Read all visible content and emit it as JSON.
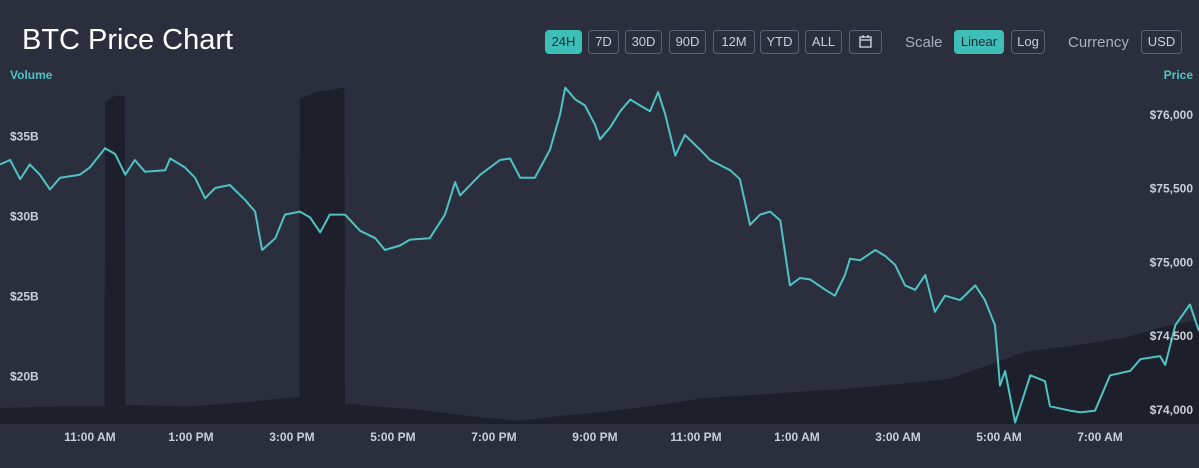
{
  "chart_data": {
    "type": "price-volume",
    "title": "BTC Price Chart",
    "toolbar": {
      "ranges": [
        "24H",
        "7D",
        "30D",
        "90D",
        "12M",
        "YTD",
        "ALL"
      ],
      "active_range": 0,
      "scale_label": "Scale",
      "scales": [
        "Linear",
        "Log"
      ],
      "active_scale": 0,
      "currency_label": "Currency",
      "currency": "USD"
    },
    "xlim": [
      9.22,
      32.96
    ],
    "xticks": [
      {
        "value": 11,
        "label": "11:00 AM"
      },
      {
        "value": 13,
        "label": "1:00 PM"
      },
      {
        "value": 15,
        "label": "3:00 PM"
      },
      {
        "value": 17,
        "label": "5:00 PM"
      },
      {
        "value": 19,
        "label": "7:00 PM"
      },
      {
        "value": 21,
        "label": "9:00 PM"
      },
      {
        "value": 23,
        "label": "11:00 PM"
      },
      {
        "value": 25,
        "label": "1:00 AM"
      },
      {
        "value": 27,
        "label": "3:00 AM"
      },
      {
        "value": 29,
        "label": "5:00 AM"
      },
      {
        "value": 31,
        "label": "7:00 AM"
      }
    ],
    "ylim": [
      17.1,
      39.2
    ],
    "yticks": [
      {
        "value": 20,
        "label": "$20B"
      },
      {
        "value": 25,
        "label": "$25B"
      },
      {
        "value": 30,
        "label": "$30B"
      },
      {
        "value": 35,
        "label": "$35B"
      }
    ],
    "y2lim": [
      73910,
      76310
    ],
    "y2ticks": [
      {
        "value": 74000,
        "label": "$74,000"
      },
      {
        "value": 74500,
        "label": "$74,500"
      },
      {
        "value": 75000,
        "label": "$75,000"
      },
      {
        "value": 75500,
        "label": "$75,500"
      },
      {
        "value": 76000,
        "label": "$76,000"
      }
    ],
    "series": [
      {
        "name": "Volume",
        "color": "#1d202b",
        "kind": "area",
        "x": [
          9.22,
          10.4,
          11.29,
          11.3,
          11.5,
          11.69,
          11.7,
          13.0,
          14.2,
          15.15,
          15.16,
          15.46,
          16.04,
          16.05,
          16.65,
          17.5,
          18.5,
          19.5,
          20.3,
          21.3,
          22.3,
          23.1,
          24.0,
          25.0,
          26.0,
          27.0,
          28.0,
          29.0,
          29.5,
          30.5,
          31.5,
          32.3,
          32.96
        ],
        "values": [
          18.1,
          18.2,
          18.2,
          37.2,
          37.6,
          37.6,
          18.3,
          18.2,
          18.5,
          18.8,
          37.4,
          37.8,
          38.1,
          18.4,
          18.2,
          18.0,
          17.6,
          17.3,
          17.6,
          17.9,
          18.3,
          18.7,
          18.9,
          19.1,
          19.3,
          19.6,
          19.9,
          21.0,
          21.6,
          22.0,
          22.5,
          23.2,
          23.6
        ]
      },
      {
        "name": "Price",
        "color": "#4fc3c4",
        "kind": "line",
        "axis": "y2",
        "x": [
          9.22,
          9.42,
          9.62,
          9.81,
          10.01,
          10.21,
          10.41,
          10.8,
          11.0,
          11.3,
          11.5,
          11.7,
          11.89,
          12.09,
          12.49,
          12.59,
          12.88,
          13.08,
          13.28,
          13.48,
          13.77,
          14.07,
          14.27,
          14.41,
          14.67,
          14.86,
          15.16,
          15.36,
          15.56,
          15.75,
          16.05,
          16.35,
          16.65,
          16.84,
          17.14,
          17.34,
          17.73,
          18.03,
          18.23,
          18.33,
          18.73,
          19.12,
          19.32,
          19.52,
          19.81,
          20.11,
          20.31,
          20.41,
          20.61,
          20.8,
          21.0,
          21.1,
          21.3,
          21.5,
          21.7,
          21.89,
          22.09,
          22.25,
          22.39,
          22.59,
          22.78,
          23.08,
          23.28,
          23.68,
          23.87,
          24.07,
          24.27,
          24.47,
          24.67,
          24.86,
          25.06,
          25.26,
          25.56,
          25.75,
          25.95,
          26.05,
          26.25,
          26.55,
          26.74,
          26.94,
          27.14,
          27.34,
          27.54,
          27.73,
          27.93,
          28.23,
          28.53,
          28.72,
          28.92,
          29.02,
          29.12,
          29.32,
          29.62,
          29.91,
          30.01,
          30.41,
          30.61,
          30.9,
          31.2,
          31.6,
          31.8,
          32.19,
          32.29,
          32.49,
          32.78,
          32.96
        ],
        "values": [
          75670,
          75700,
          75570,
          75670,
          75600,
          75500,
          75580,
          75600,
          75650,
          75780,
          75740,
          75600,
          75700,
          75620,
          75630,
          75710,
          75650,
          75580,
          75440,
          75510,
          75530,
          75430,
          75350,
          75090,
          75170,
          75330,
          75350,
          75310,
          75210,
          75330,
          75330,
          75220,
          75170,
          75090,
          75120,
          75160,
          75170,
          75330,
          75550,
          75460,
          75600,
          75700,
          75710,
          75580,
          75580,
          75770,
          76010,
          76190,
          76110,
          76070,
          75940,
          75840,
          75920,
          76030,
          76110,
          76070,
          76030,
          76160,
          76010,
          75730,
          75870,
          75770,
          75700,
          75630,
          75570,
          75260,
          75330,
          75350,
          75290,
          74850,
          74900,
          74890,
          74820,
          74780,
          74920,
          75030,
          75020,
          75090,
          75050,
          74990,
          74850,
          74820,
          74920,
          74670,
          74780,
          74750,
          74850,
          74750,
          74580,
          74170,
          74270,
          73920,
          74240,
          74200,
          74030,
          74000,
          73990,
          74000,
          74240,
          74270,
          74350,
          74370,
          74310,
          74580,
          74720,
          74540
        ]
      }
    ]
  }
}
